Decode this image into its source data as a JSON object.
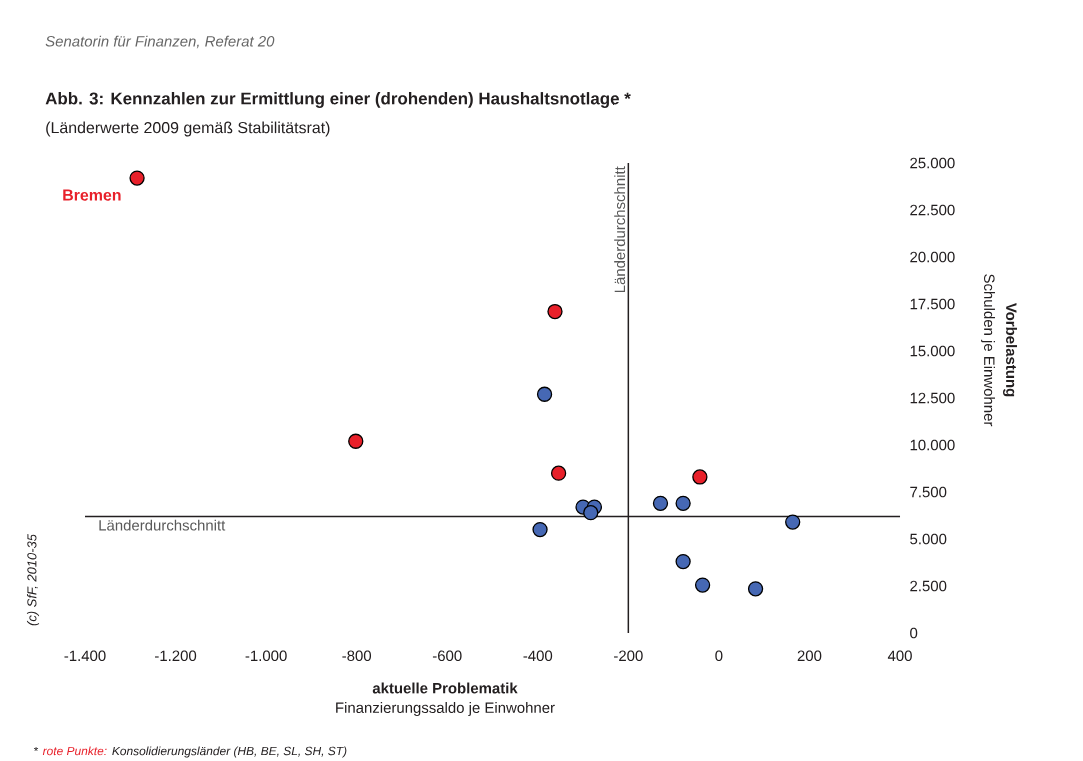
{
  "chart_data": {
    "type": "scatter",
    "title": "Abb. 3: Kennzahlen zur Ermittlung einer (drohenden) Haushaltsnotlage *",
    "subtitle": "(Länderwerte 2009 gemäß Stabilitätsrat)",
    "xlabel": "aktuelle Problematik",
    "ylabel": "Vorbelastung",
    "series": [
      {
        "color": "#e8202a",
        "x": [
          -1285,
          -362,
          -802,
          -354,
          -42
        ],
        "values": [
          24200,
          17100,
          10200,
          8500,
          8300
        ]
      },
      {
        "color": "#4668b4",
        "x": [
          -385,
          -300,
          -275,
          -283,
          -395,
          -129,
          -79,
          163,
          -79,
          -36,
          81
        ],
        "values": [
          12700,
          6700,
          6700,
          6400,
          5500,
          6900,
          6900,
          5900,
          3800,
          2550,
          2350
        ]
      }
    ],
    "xlim": [
      -1400,
      400
    ],
    "ylim": [
      0,
      25000
    ],
    "xticks": [
      {
        "value": -1400,
        "label": "-1.400"
      },
      {
        "value": -1200,
        "label": "-1.200"
      },
      {
        "value": -1000,
        "label": "-1.000"
      },
      -800,
      -600,
      -400,
      -200,
      0,
      200,
      400
    ],
    "yticks": [
      0,
      {
        "value": 2500,
        "label": "2.500"
      },
      {
        "value": 5000,
        "label": "5.000"
      },
      {
        "value": 7500,
        "label": "7.500"
      },
      {
        "value": 10000,
        "label": "10.000"
      },
      {
        "value": 12500,
        "label": "12.500"
      },
      {
        "value": 15000,
        "label": "15.000"
      },
      {
        "value": 17500,
        "label": "17.500"
      },
      {
        "value": 20000,
        "label": "20.000"
      },
      {
        "value": 22500,
        "label": "22.500"
      },
      {
        "value": 25000,
        "label": "25.000"
      }
    ],
    "ref_lines": [
      {
        "axis": "x",
        "value": -200,
        "label": "Länderdurchschnitt",
        "color": "#231f20"
      },
      {
        "axis": "y",
        "value": 6200,
        "label": "Länderdurchschnitt",
        "color": "#231f20"
      }
    ],
    "annotations": [
      "Senatorin für Finanzen, Referat 20",
      "(c) SfF, 2010-35",
      "Finanzierungssaldo je Einwohner",
      "Schulden je Einwohner",
      "*",
      "rote Punkte:",
      "Konsolidierungsländer (HB, BE, SL, SH, ST)",
      {
        "text": "Bremen",
        "x": -1285,
        "y": 24200
      }
    ]
  }
}
